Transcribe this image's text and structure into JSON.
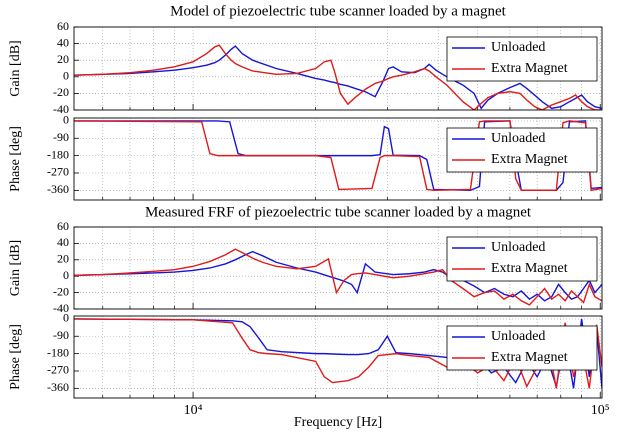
{
  "chart_data": [
    {
      "type": "line",
      "title": "Model of piezoelectric tube scanner loaded by a magnet",
      "ylabel": "Gain [dB]",
      "xscale": "log",
      "grid": true,
      "legend": "upper right",
      "xlim": [
        5100,
        101000
      ],
      "xticks": [
        10000,
        100000
      ],
      "xminorticks": [
        6000,
        7000,
        8000,
        9000,
        20000,
        30000,
        40000,
        50000,
        60000,
        70000,
        80000,
        90000
      ],
      "ylim": [
        -40,
        60
      ],
      "yticks": [
        60,
        40,
        20,
        0,
        -20,
        -40
      ],
      "x": [
        5100,
        6000,
        7000,
        8000,
        9000,
        10000,
        10800,
        11300,
        11600,
        12000,
        12400,
        12700,
        13200,
        14000,
        16000,
        18000,
        20000,
        21000,
        21800,
        22300,
        23000,
        24000,
        25000,
        26500,
        28000,
        29300,
        30200,
        31000,
        32500,
        35000,
        37000,
        38000,
        39500,
        42000,
        46000,
        49000,
        51000,
        53000,
        56000,
        60000,
        63500,
        66000,
        69000,
        72000,
        76000,
        80000,
        84000,
        87000,
        90000,
        93000,
        97000,
        101000
      ],
      "series": [
        {
          "name": "Unloaded",
          "color": "#1515d8",
          "values": [
            2,
            3,
            4,
            6,
            8,
            11,
            14,
            17,
            20,
            26,
            33,
            37,
            28,
            20,
            10,
            4,
            -2,
            -4,
            -6,
            -7,
            -9,
            -11,
            -14,
            -18,
            -24,
            -5,
            10,
            12,
            6,
            5,
            10,
            15,
            8,
            0,
            -10,
            -20,
            -38,
            -28,
            -20,
            -13,
            -8,
            -14,
            -22,
            -30,
            -38,
            -36,
            -30,
            -26,
            -22,
            -30,
            -36,
            -38
          ]
        },
        {
          "name": "Extra Magnet",
          "color": "#e01a1a",
          "values": [
            2,
            3,
            5,
            8,
            12,
            18,
            28,
            36,
            38,
            28,
            20,
            16,
            12,
            7,
            3,
            4,
            10,
            18,
            20,
            5,
            -20,
            -33,
            -25,
            -15,
            -8,
            -5,
            -2,
            0,
            2,
            6,
            10,
            7,
            0,
            -10,
            -30,
            -40,
            -32,
            -25,
            -20,
            -18,
            -20,
            -28,
            -36,
            -40,
            -34,
            -30,
            -26,
            -22,
            -30,
            -36,
            -40,
            -40
          ]
        }
      ]
    },
    {
      "type": "line",
      "ylabel": "Phase [deg]",
      "xscale": "log",
      "grid": true,
      "legend": "upper right",
      "xlim": [
        5100,
        101000
      ],
      "xticks": [
        10000,
        100000
      ],
      "xminorticks": [
        6000,
        7000,
        8000,
        9000,
        20000,
        30000,
        40000,
        50000,
        60000,
        70000,
        80000,
        90000
      ],
      "ylim": [
        -410,
        15
      ],
      "yticks": [
        0,
        -90,
        -180,
        -270,
        -360
      ],
      "x": [
        5100,
        10500,
        11000,
        11500,
        12300,
        12900,
        13500,
        20000,
        21800,
        22800,
        27500,
        28800,
        29500,
        30200,
        31000,
        36000,
        37500,
        39000,
        48000,
        50500,
        52000,
        60000,
        62000,
        64000,
        78000,
        81000,
        84000,
        92000,
        95000,
        101000
      ],
      "series": [
        {
          "name": "Unloaded",
          "color": "#1515d8",
          "values": [
            0,
            0,
            0,
            0,
            -5,
            -170,
            -180,
            -180,
            -180,
            -180,
            -180,
            -175,
            -30,
            -40,
            -178,
            -180,
            -200,
            -355,
            -360,
            -340,
            -5,
            0,
            -200,
            -360,
            -360,
            -320,
            -5,
            0,
            -350,
            -345
          ]
        },
        {
          "name": "Extra Magnet",
          "color": "#e01a1a",
          "values": [
            0,
            -5,
            -170,
            -180,
            -180,
            -180,
            -180,
            -180,
            -190,
            -355,
            -350,
            -190,
            -180,
            -180,
            -180,
            -185,
            -355,
            -360,
            -355,
            -5,
            0,
            0,
            -300,
            -360,
            -360,
            -10,
            0,
            -10,
            -360,
            -350
          ]
        }
      ]
    },
    {
      "type": "line",
      "title": "Measured FRF of piezoelectric tube scanner loaded by a magnet",
      "ylabel": "Gain [dB]",
      "xscale": "log",
      "grid": true,
      "legend": "upper right",
      "xlim": [
        5100,
        101000
      ],
      "xticks": [
        10000,
        100000
      ],
      "xminorticks": [
        6000,
        7000,
        8000,
        9000,
        20000,
        30000,
        40000,
        50000,
        60000,
        70000,
        80000,
        90000
      ],
      "ylim": [
        -40,
        60
      ],
      "yticks": [
        60,
        40,
        20,
        0,
        -20,
        -40
      ],
      "x": [
        5100,
        6000,
        7000,
        8000,
        9000,
        10000,
        11000,
        12000,
        12700,
        13300,
        14000,
        14800,
        16000,
        18000,
        20000,
        21500,
        22500,
        23500,
        24500,
        25300,
        26500,
        28000,
        31000,
        34000,
        37000,
        39000,
        41000,
        43000,
        46000,
        49000,
        52000,
        55000,
        58000,
        61000,
        64000,
        67000,
        70000,
        73000,
        76000,
        79000,
        82000,
        85000,
        88000,
        91000,
        94000,
        97000,
        101000
      ],
      "series": [
        {
          "name": "Unloaded",
          "color": "#1515d8",
          "values": [
            1,
            2,
            3,
            4,
            5,
            7,
            10,
            15,
            20,
            25,
            30,
            25,
            17,
            10,
            5,
            0,
            -3,
            -6,
            -10,
            -20,
            15,
            5,
            2,
            3,
            5,
            8,
            5,
            -2,
            -5,
            -12,
            -20,
            -15,
            -22,
            -25,
            -18,
            -28,
            -22,
            -30,
            -25,
            -10,
            -20,
            -28,
            -25,
            -15,
            -5,
            -20,
            -10
          ]
        },
        {
          "name": "Extra Magnet",
          "color": "#e01a1a",
          "values": [
            1,
            2,
            4,
            6,
            8,
            12,
            18,
            26,
            33,
            28,
            22,
            17,
            12,
            9,
            12,
            21,
            -20,
            -5,
            2,
            3,
            4,
            2,
            -2,
            0,
            3,
            5,
            8,
            -5,
            -15,
            -25,
            -20,
            -18,
            -28,
            -22,
            -30,
            -35,
            -25,
            -15,
            -28,
            -22,
            -30,
            -18,
            -25,
            -32,
            -10,
            -25,
            -30
          ]
        }
      ]
    },
    {
      "type": "line",
      "ylabel": "Phase [deg]",
      "xlabel": "Frequency [Hz]",
      "xscale": "log",
      "grid": true,
      "legend": "upper right",
      "xlim": [
        5100,
        101000
      ],
      "xticks": [
        {
          "value": 10000,
          "label": "10⁴"
        },
        {
          "value": 100000,
          "label": "10⁵"
        }
      ],
      "xminorticks": [
        6000,
        7000,
        8000,
        9000,
        20000,
        30000,
        40000,
        50000,
        60000,
        70000,
        80000,
        90000
      ],
      "ylim": [
        -410,
        15
      ],
      "yticks": [
        0,
        -90,
        -180,
        -270,
        -360
      ],
      "x": [
        5100,
        10000,
        12500,
        13200,
        13800,
        14500,
        15200,
        16500,
        20000,
        21000,
        22000,
        24000,
        25500,
        27000,
        28500,
        30000,
        31500,
        34000,
        38000,
        42000,
        46000,
        50000,
        54000,
        58000,
        62000,
        66000,
        70000,
        74000,
        78000,
        82000,
        86000,
        90000,
        94000,
        98000,
        101000
      ],
      "series": [
        {
          "name": "Unloaded",
          "color": "#1515d8",
          "values": [
            0,
            -5,
            -10,
            -15,
            -40,
            -100,
            -160,
            -170,
            -180,
            -180,
            -182,
            -185,
            -185,
            -180,
            -160,
            -90,
            -175,
            -180,
            -190,
            -200,
            -230,
            -200,
            -280,
            -250,
            -330,
            -220,
            -300,
            -200,
            -350,
            -100,
            -360,
            0,
            -300,
            -50,
            -360
          ]
        },
        {
          "name": "Extra Magnet",
          "color": "#e01a1a",
          "values": [
            0,
            -5,
            -20,
            -100,
            -160,
            -175,
            -180,
            -185,
            -220,
            -300,
            -330,
            -320,
            -300,
            -250,
            -190,
            -185,
            -180,
            -190,
            -200,
            -250,
            -220,
            -280,
            -240,
            -320,
            -200,
            -350,
            -250,
            -100,
            -360,
            -20,
            -300,
            -150,
            -360,
            -30,
            -250
          ]
        }
      ]
    }
  ]
}
